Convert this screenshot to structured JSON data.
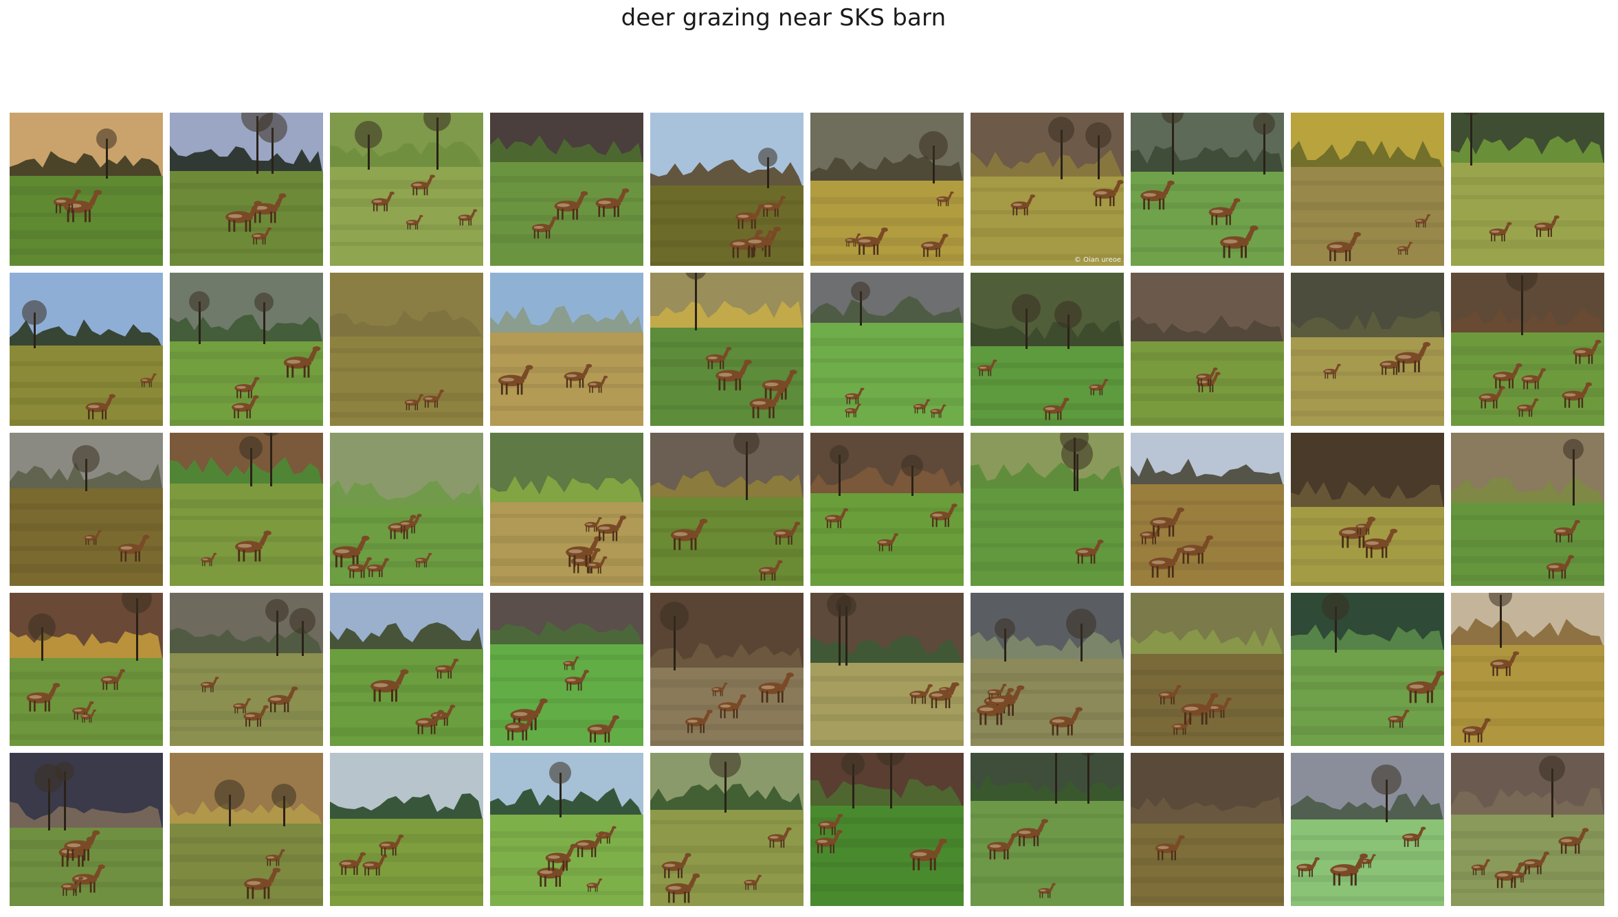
{
  "title": "deer grazing near SKS barn",
  "grid": {
    "rows": 5,
    "cols": 10,
    "tiles": [
      {
        "sky": "#c9a36b",
        "far": "#3d3a22",
        "ground": "#5f8a32",
        "deer": 2,
        "watermark": ""
      },
      {
        "sky": "#9aa6c4",
        "far": "#262d25",
        "ground": "#6d8a38",
        "deer": 3,
        "watermark": ""
      },
      {
        "sky": "#7f9a4a",
        "far": "#6f8f3f",
        "ground": "#8fa54f",
        "deer": 4,
        "watermark": ""
      },
      {
        "sky": "#4a3f3c",
        "far": "#4c6d2f",
        "ground": "#6b9440",
        "deer": 3,
        "watermark": ""
      },
      {
        "sky": "#a9c2dc",
        "far": "#5a4a2e",
        "ground": "#6d6b2a",
        "deer": 5,
        "watermark": ""
      },
      {
        "sky": "#6f6d5c",
        "far": "#4b4633",
        "ground": "#b19c40",
        "deer": 4,
        "watermark": ""
      },
      {
        "sky": "#6e5a48",
        "far": "#8a7a3e",
        "ground": "#a59a45",
        "deer": 2,
        "watermark": "© Oian ureoe"
      },
      {
        "sky": "#5d6a58",
        "far": "#3c4a36",
        "ground": "#6fa24a",
        "deer": 3,
        "watermark": ""
      },
      {
        "sky": "#b9a33c",
        "far": "#6c6a2a",
        "ground": "#98884a",
        "deer": 3,
        "watermark": ""
      },
      {
        "sky": "#3f4e32",
        "far": "#6e9838",
        "ground": "#9aa44c",
        "deer": 2,
        "watermark": ""
      },
      {
        "sky": "#8eaed6",
        "far": "#2d3a22",
        "ground": "#8a8a38",
        "deer": 2,
        "watermark": ""
      },
      {
        "sky": "#6f7a6a",
        "far": "#3f5a35",
        "ground": "#73a03f",
        "deer": 3,
        "watermark": ""
      },
      {
        "sky": "#8a7e44",
        "far": "#7d7240",
        "ground": "#8e8240",
        "deer": 2,
        "watermark": ""
      },
      {
        "sky": "#8fb2d4",
        "far": "#8a9a86",
        "ground": "#b39a55",
        "deer": 3,
        "watermark": ""
      },
      {
        "sky": "#9a8e5a",
        "far": "#c6ad48",
        "ground": "#5d8c3a",
        "deer": 4,
        "watermark": ""
      },
      {
        "sky": "#6e6f70",
        "far": "#4b5a40",
        "ground": "#6fad4a",
        "deer": 4,
        "watermark": ""
      },
      {
        "sky": "#515e3a",
        "far": "#3a4a2c",
        "ground": "#5e9a3e",
        "deer": 3,
        "watermark": ""
      },
      {
        "sky": "#6b5a4b",
        "far": "#514638",
        "ground": "#7a9a3e",
        "deer": 2,
        "watermark": ""
      },
      {
        "sky": "#4c4d3c",
        "far": "#5d5d3e",
        "ground": "#a69a4f",
        "deer": 3,
        "watermark": ""
      },
      {
        "sky": "#5e4a36",
        "far": "#6a4a32",
        "ground": "#6e9a3e",
        "deer": 6,
        "watermark": ""
      },
      {
        "sky": "#8a8a82",
        "far": "#5c5f48",
        "ground": "#7a6a30",
        "deer": 2,
        "watermark": ""
      },
      {
        "sky": "#7a5a3a",
        "far": "#4c8a36",
        "ground": "#7d9a3e",
        "deer": 2,
        "watermark": ""
      },
      {
        "sky": "#8a9a6a",
        "far": "#6e9a48",
        "ground": "#6d9e42",
        "deer": 6,
        "watermark": ""
      },
      {
        "sky": "#5f7a44",
        "far": "#86a844",
        "ground": "#b09a55",
        "deer": 5,
        "watermark": ""
      },
      {
        "sky": "#6b5e52",
        "far": "#8f7e3a",
        "ground": "#6b8a34",
        "deer": 3,
        "watermark": ""
      },
      {
        "sky": "#5f4a3a",
        "far": "#7d5a3a",
        "ground": "#6a9e3a",
        "deer": 3,
        "watermark": ""
      },
      {
        "sky": "#8a9a5a",
        "far": "#5a8c38",
        "ground": "#62993e",
        "deer": 1,
        "watermark": ""
      },
      {
        "sky": "#b9c4d4",
        "far": "#4a4838",
        "ground": "#9a7e3e",
        "deer": 4,
        "watermark": ""
      },
      {
        "sky": "#4a3a2a",
        "far": "#6a5a36",
        "ground": "#a49c45",
        "deer": 3,
        "watermark": ""
      },
      {
        "sky": "#8a7a5e",
        "far": "#7d8a42",
        "ground": "#65963e",
        "deer": 2,
        "watermark": ""
      },
      {
        "sky": "#6a4a36",
        "far": "#c29a3c",
        "ground": "#6e963c",
        "deer": 4,
        "watermark": ""
      },
      {
        "sky": "#6e6a5e",
        "far": "#4e5a40",
        "ground": "#8b9050",
        "deer": 4,
        "watermark": ""
      },
      {
        "sky": "#9ab0cc",
        "far": "#3e4a2a",
        "ground": "#6a9e3e",
        "deer": 4,
        "watermark": ""
      },
      {
        "sky": "#5a4f4a",
        "far": "#4a6a3a",
        "ground": "#62ad46",
        "deer": 5,
        "watermark": ""
      },
      {
        "sky": "#5a4434",
        "far": "#6e5a40",
        "ground": "#8a7a5a",
        "deer": 4,
        "watermark": ""
      },
      {
        "sky": "#5e4a3a",
        "far": "#3d5a36",
        "ground": "#a59e5e",
        "deer": 3,
        "watermark": ""
      },
      {
        "sky": "#5a5e62",
        "far": "#7e8a6a",
        "ground": "#8c8a5a",
        "deer": 5,
        "watermark": ""
      },
      {
        "sky": "#7a7a4a",
        "far": "#8a9a4a",
        "ground": "#7a6a3a",
        "deer": 4,
        "watermark": ""
      },
      {
        "sky": "#2f4a36",
        "far": "#5a8a4a",
        "ground": "#6fa04a",
        "deer": 2,
        "watermark": ""
      },
      {
        "sky": "#c4b59a",
        "far": "#8a6a3a",
        "ground": "#b0963e",
        "deer": 2,
        "watermark": ""
      },
      {
        "sky": "#3a3a4a",
        "far": "#7c6a5a",
        "ground": "#6f9040",
        "deer": 4,
        "watermark": ""
      },
      {
        "sky": "#9a7a4a",
        "far": "#b49a4a",
        "ground": "#7d8a40",
        "deer": 2,
        "watermark": ""
      },
      {
        "sky": "#b7c4cc",
        "far": "#2a4a2a",
        "ground": "#7e9e3e",
        "deer": 3,
        "watermark": ""
      },
      {
        "sky": "#a6c0d6",
        "far": "#2a4a2a",
        "ground": "#7eb04a",
        "deer": 5,
        "watermark": ""
      },
      {
        "sky": "#8a9a6a",
        "far": "#3a5a2e",
        "ground": "#8e9a4a",
        "deer": 4,
        "watermark": ""
      },
      {
        "sky": "#5a3e32",
        "far": "#4e6a30",
        "ground": "#4a8a2e",
        "deer": 3,
        "watermark": ""
      },
      {
        "sky": "#3e4e3a",
        "far": "#3a5a2e",
        "ground": "#6c9848",
        "deer": 3,
        "watermark": ""
      },
      {
        "sky": "#5a4a3a",
        "far": "#6a5a40",
        "ground": "#7e6e3a",
        "deer": 1,
        "watermark": ""
      },
      {
        "sky": "#8a8e9a",
        "far": "#4a5a48",
        "ground": "#8ac276",
        "deer": 4,
        "watermark": ""
      },
      {
        "sky": "#6a5a50",
        "far": "#7a6a56",
        "ground": "#8a9a5a",
        "deer": 5,
        "watermark": ""
      }
    ]
  }
}
